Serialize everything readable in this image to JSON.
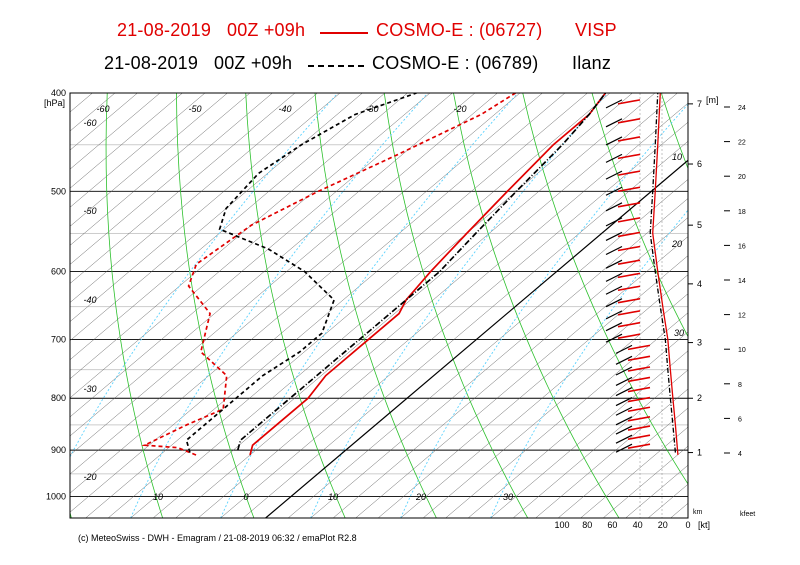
{
  "header": {
    "line1": {
      "date": "21-08-2019",
      "run": "00Z +09h",
      "model": "COSMO-E : (06727)",
      "station": "VISP",
      "color": "#e00000"
    },
    "line2": {
      "date": "21-08-2019",
      "run": "00Z +09h",
      "model": "COSMO-E : (06789)",
      "station": "Ilanz",
      "color": "#000000"
    }
  },
  "footer": "(c) MeteoSwiss - DWH - Emagram / 21-08-2019 06:32 / emaPlot R2.8",
  "chart_data": {
    "type": "line",
    "title": "Emagram",
    "pressure_unit": "[hPa]",
    "pressure_ticks": [
      400,
      500,
      600,
      700,
      800,
      900,
      1000
    ],
    "height_unit": "[m]",
    "height_ticks": [
      1,
      2,
      3,
      4,
      5,
      6,
      7
    ],
    "kfeet_unit": "kfeet",
    "kfeet_ticks": [
      4,
      6,
      8,
      10,
      12,
      14,
      16,
      18,
      20,
      22,
      24
    ],
    "wind_unit": "[kt]",
    "wind_km_label": "km",
    "wind_speed_ticks": [
      100,
      80,
      60,
      40,
      20,
      0
    ],
    "wind_profile_labels": [
      10,
      20,
      30
    ],
    "temp_labels_top": [
      -60,
      -50,
      -40,
      -30,
      -20
    ],
    "temp_labels_bottom": [
      10,
      0,
      10,
      20,
      30
    ],
    "temp_labels_left": [
      -60,
      -50,
      -40,
      -30,
      -20
    ],
    "series": [
      {
        "name": "VISP temperature",
        "station": "VISP",
        "color": "#e00000",
        "dash": "solid",
        "points": [
          [
            -15,
            910
          ],
          [
            -16,
            890
          ],
          [
            -16,
            850
          ],
          [
            -16,
            800
          ],
          [
            -17,
            760
          ],
          [
            -17,
            700
          ],
          [
            -17,
            660
          ],
          [
            -18,
            640
          ],
          [
            -19,
            600
          ],
          [
            -20,
            550
          ],
          [
            -21,
            500
          ],
          [
            -22,
            450
          ],
          [
            -22,
            420
          ],
          [
            -23,
            400
          ]
        ]
      },
      {
        "name": "VISP dewpoint",
        "station": "VISP",
        "color": "#e00000",
        "dash": "dash",
        "points": [
          [
            -21,
            910
          ],
          [
            -24,
            895
          ],
          [
            -28,
            890
          ],
          [
            -26,
            850
          ],
          [
            -24,
            820
          ],
          [
            -28,
            760
          ],
          [
            -34,
            720
          ],
          [
            -38,
            660
          ],
          [
            -44,
            620
          ],
          [
            -46,
            590
          ],
          [
            -45,
            540
          ],
          [
            -42,
            500
          ],
          [
            -38,
            460
          ],
          [
            -34,
            420
          ],
          [
            -33,
            400
          ]
        ]
      },
      {
        "name": "Ilanz temperature",
        "station": "Ilanz",
        "color": "#000000",
        "dash": "dashdot",
        "points": [
          [
            -17,
            900
          ],
          [
            -18,
            880
          ],
          [
            -18,
            850
          ],
          [
            -18,
            800
          ],
          [
            -18,
            750
          ],
          [
            -18,
            700
          ],
          [
            -18,
            650
          ],
          [
            -18,
            600
          ],
          [
            -19,
            550
          ],
          [
            -20,
            500
          ],
          [
            -21,
            450
          ],
          [
            -22,
            420
          ],
          [
            -23,
            400
          ]
        ]
      },
      {
        "name": "Ilanz dewpoint",
        "station": "Ilanz",
        "color": "#000000",
        "dash": "dash",
        "points": [
          [
            -22,
            905
          ],
          [
            -24,
            880
          ],
          [
            -24,
            850
          ],
          [
            -24,
            800
          ],
          [
            -24,
            760
          ],
          [
            -23,
            720
          ],
          [
            -23,
            690
          ],
          [
            -26,
            640
          ],
          [
            -33,
            600
          ],
          [
            -40,
            570
          ],
          [
            -48,
            545
          ],
          [
            -50,
            520
          ],
          [
            -51,
            480
          ],
          [
            -50,
            450
          ],
          [
            -48,
            420
          ],
          [
            -44,
            400
          ]
        ]
      }
    ],
    "wind_speed_profiles": [
      {
        "station": "VISP",
        "color": "#e00000",
        "points": [
          [
            8,
            910
          ],
          [
            10,
            850
          ],
          [
            12,
            800
          ],
          [
            14,
            750
          ],
          [
            16,
            700
          ],
          [
            20,
            650
          ],
          [
            24,
            600
          ],
          [
            28,
            550
          ],
          [
            26,
            500
          ],
          [
            24,
            450
          ],
          [
            22,
            400
          ]
        ]
      },
      {
        "station": "Ilanz",
        "color": "#000000",
        "points": [
          [
            10,
            905
          ],
          [
            12,
            850
          ],
          [
            14,
            800
          ],
          [
            16,
            750
          ],
          [
            18,
            700
          ],
          [
            22,
            650
          ],
          [
            26,
            600
          ],
          [
            30,
            550
          ],
          [
            28,
            500
          ],
          [
            26,
            450
          ],
          [
            24,
            400
          ]
        ]
      }
    ]
  }
}
